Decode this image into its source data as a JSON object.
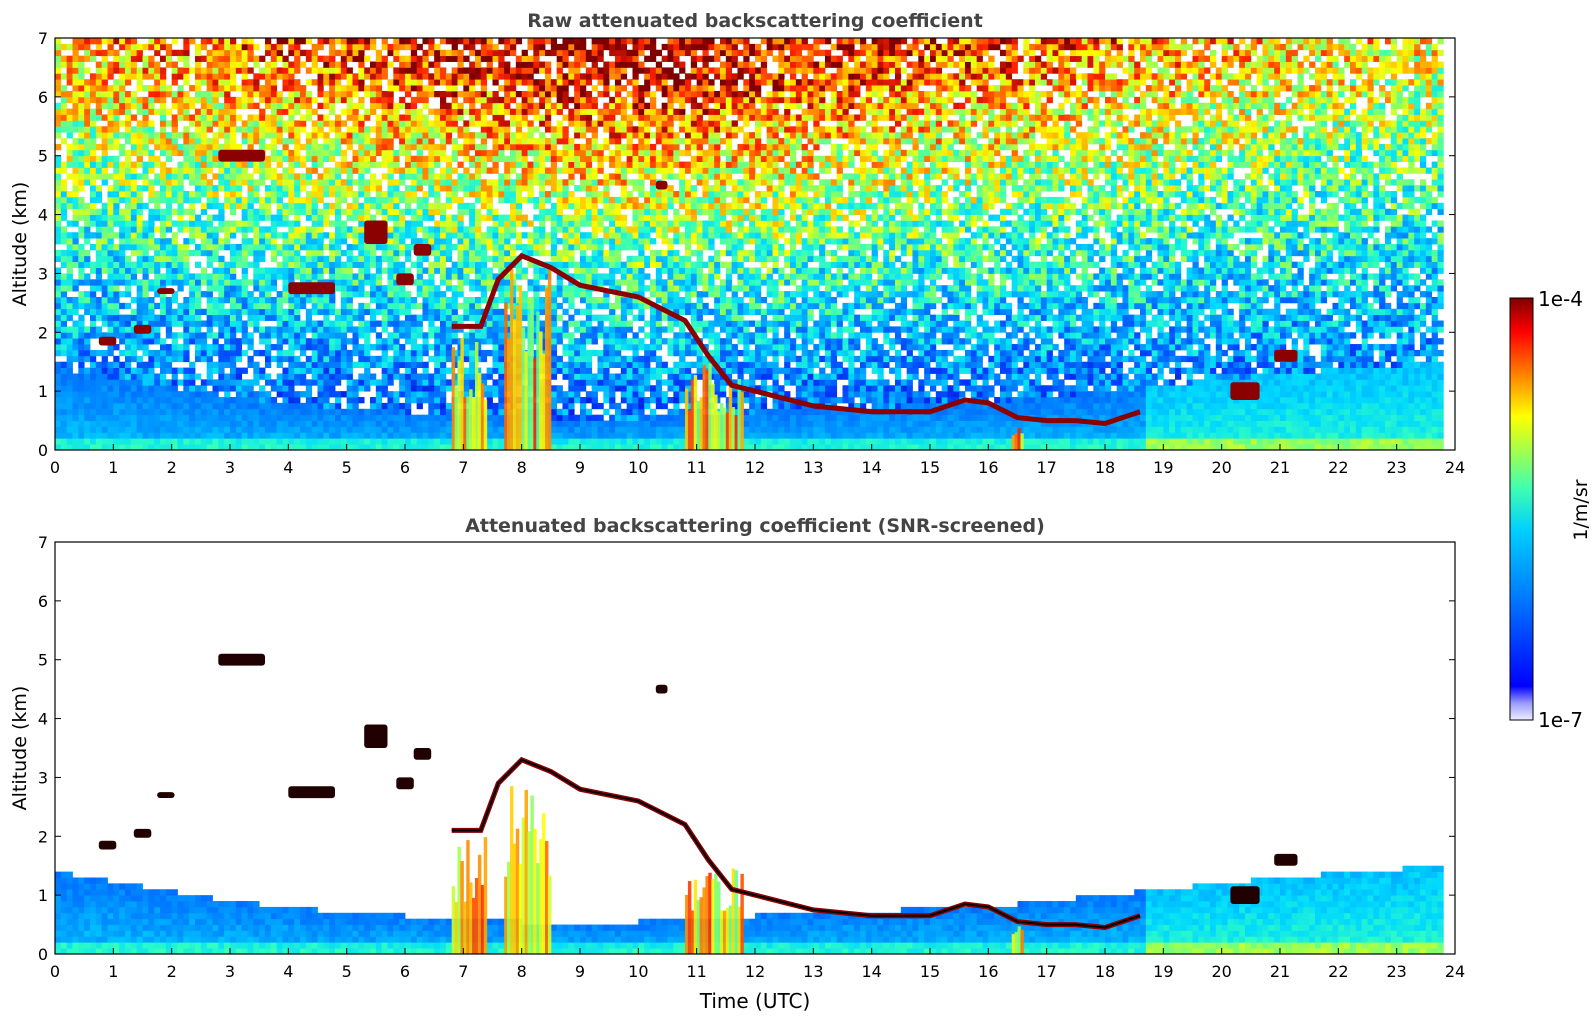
{
  "chart_data": [
    {
      "type": "heatmap",
      "title": "Raw attenuated backscattering coefficient",
      "xlabel": "",
      "ylabel": "Altitude (km)",
      "xlim": [
        0,
        24
      ],
      "ylim": [
        0,
        7
      ],
      "x_ticks": [
        "0",
        "1",
        "2",
        "3",
        "4",
        "5",
        "6",
        "7",
        "8",
        "9",
        "10",
        "11",
        "12",
        "13",
        "14",
        "15",
        "16",
        "17",
        "18",
        "19",
        "20",
        "21",
        "22",
        "23",
        "24"
      ],
      "y_ticks": [
        "0",
        "1",
        "2",
        "3",
        "4",
        "5",
        "6",
        "7"
      ],
      "data_extent_hours": [
        0,
        23.8
      ],
      "features": {
        "boundary_layer_top_km": [
          [
            0,
            1.4
          ],
          [
            3,
            0.9
          ],
          [
            5,
            0.7
          ],
          [
            7,
            0.6
          ],
          [
            9,
            0.5
          ],
          [
            11,
            0.6
          ],
          [
            13,
            0.7
          ],
          [
            16,
            0.8
          ],
          [
            19,
            1.1
          ],
          [
            21,
            1.3
          ],
          [
            23.8,
            1.5
          ]
        ],
        "noise_level_low_hours": [
          [
            0,
            1.0
          ],
          [
            12,
            0.8
          ],
          [
            16,
            1.0
          ],
          [
            23.8,
            0.95
          ]
        ],
        "descending_cloud_layer": [
          [
            6.8,
            2.1
          ],
          [
            7.3,
            2.1
          ],
          [
            7.6,
            2.9
          ],
          [
            8.0,
            3.3
          ],
          [
            8.5,
            3.1
          ],
          [
            9.0,
            2.8
          ],
          [
            10.0,
            2.6
          ],
          [
            10.8,
            2.2
          ],
          [
            11.2,
            1.6
          ],
          [
            11.6,
            1.1
          ],
          [
            12.0,
            1.0
          ],
          [
            13.0,
            0.75
          ],
          [
            14.0,
            0.65
          ],
          [
            15.0,
            0.65
          ],
          [
            15.6,
            0.85
          ],
          [
            16.0,
            0.8
          ],
          [
            16.5,
            0.55
          ],
          [
            17.0,
            0.5
          ],
          [
            17.5,
            0.5
          ],
          [
            18.0,
            0.45
          ],
          [
            18.6,
            0.65
          ]
        ],
        "cloud_patches": [
          {
            "t": 0.9,
            "z": 1.85,
            "dt": 0.3,
            "dz": 0.15
          },
          {
            "t": 1.5,
            "z": 2.05,
            "dt": 0.3,
            "dz": 0.15
          },
          {
            "t": 1.9,
            "z": 2.7,
            "dt": 0.3,
            "dz": 0.1
          },
          {
            "t": 3.2,
            "z": 5.0,
            "dt": 0.8,
            "dz": 0.2
          },
          {
            "t": 4.4,
            "z": 2.75,
            "dt": 0.8,
            "dz": 0.2
          },
          {
            "t": 5.5,
            "z": 3.7,
            "dt": 0.4,
            "dz": 0.4
          },
          {
            "t": 6.0,
            "z": 2.9,
            "dt": 0.3,
            "dz": 0.2
          },
          {
            "t": 6.3,
            "z": 3.4,
            "dt": 0.3,
            "dz": 0.2
          },
          {
            "t": 10.4,
            "z": 4.5,
            "dt": 0.2,
            "dz": 0.15
          },
          {
            "t": 20.4,
            "z": 1.0,
            "dt": 0.5,
            "dz": 0.3
          },
          {
            "t": 21.1,
            "z": 1.6,
            "dt": 0.4,
            "dz": 0.2
          }
        ],
        "precipitation_columns_hours": [
          [
            6.8,
            7.4
          ],
          [
            7.7,
            8.5
          ],
          [
            10.8,
            11.8
          ],
          [
            16.4,
            16.6
          ]
        ]
      }
    },
    {
      "type": "heatmap",
      "title": "Attenuated backscattering coefficient (SNR-screened)",
      "xlabel": "Time (UTC)",
      "ylabel": "Altitude (km)",
      "xlim": [
        0,
        24
      ],
      "ylim": [
        0,
        7
      ],
      "x_ticks": [
        "0",
        "1",
        "2",
        "3",
        "4",
        "5",
        "6",
        "7",
        "8",
        "9",
        "10",
        "11",
        "12",
        "13",
        "14",
        "15",
        "16",
        "17",
        "18",
        "19",
        "20",
        "21",
        "22",
        "23",
        "24"
      ],
      "y_ticks": [
        "0",
        "1",
        "2",
        "3",
        "4",
        "5",
        "6",
        "7"
      ],
      "data_extent_hours": [
        0,
        23.8
      ],
      "screened": true
    }
  ],
  "colorbar": {
    "max_label": "1e-4",
    "min_label": "1e-7",
    "unit_label": "1/m/sr",
    "colormap": "jet",
    "scale": "log",
    "range": [
      1e-07,
      0.0001
    ]
  }
}
